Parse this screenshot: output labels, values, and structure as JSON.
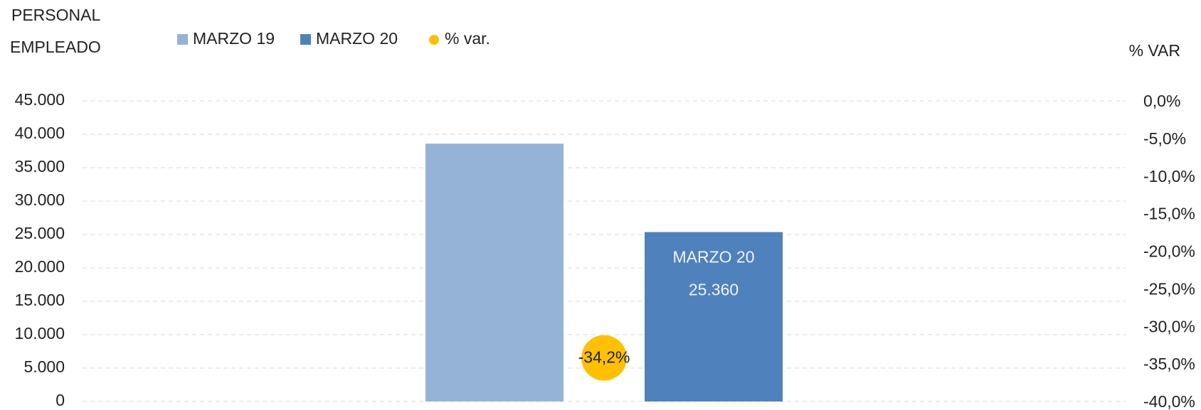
{
  "chart_data": {
    "type": "bar",
    "ylabel_lines": [
      "PERSONAL",
      "EMPLEADO"
    ],
    "y2label": "% VAR",
    "categories": [
      null
    ],
    "series": [
      {
        "name": "MARZO 19",
        "color": "#95b3d7",
        "values": [
          38600
        ]
      },
      {
        "name": "MARZO 20",
        "color": "#4f81bd",
        "values": [
          25360
        ],
        "value_labels": [
          "25.360"
        ]
      },
      {
        "name": "% var.",
        "color": "#ffc000",
        "type": "scatter",
        "axis": "y2",
        "values": [
          -34.2
        ],
        "value_labels": [
          "-34,2%"
        ]
      }
    ],
    "ylim": [
      0,
      45000
    ],
    "yticks": [
      0,
      {
        "value": 5000,
        "label": "5.000"
      },
      {
        "value": 10000,
        "label": "10.000"
      },
      {
        "value": 15000,
        "label": "15.000"
      },
      {
        "value": 20000,
        "label": "20.000"
      },
      {
        "value": 25000,
        "label": "25.000"
      },
      {
        "value": 30000,
        "label": "30.000"
      },
      {
        "value": 35000,
        "label": "35.000"
      },
      {
        "value": 40000,
        "label": "40.000"
      },
      {
        "value": 45000,
        "label": "45.000"
      }
    ],
    "y2lim": [
      -40,
      0
    ],
    "y2ticks": [
      {
        "value": -40,
        "label": "-40,0%"
      },
      {
        "value": -35,
        "label": "-35,0%"
      },
      {
        "value": -30,
        "label": "-30,0%"
      },
      {
        "value": -25,
        "label": "-25,0%"
      },
      {
        "value": -20,
        "label": "-20,0%"
      },
      {
        "value": -15,
        "label": "-15,0%"
      },
      {
        "value": -10,
        "label": "-10,0%"
      },
      {
        "value": -5,
        "label": "-5,0%"
      },
      {
        "value": 0,
        "label": "0,0%"
      }
    ],
    "grid": true,
    "legend": "top-left"
  }
}
